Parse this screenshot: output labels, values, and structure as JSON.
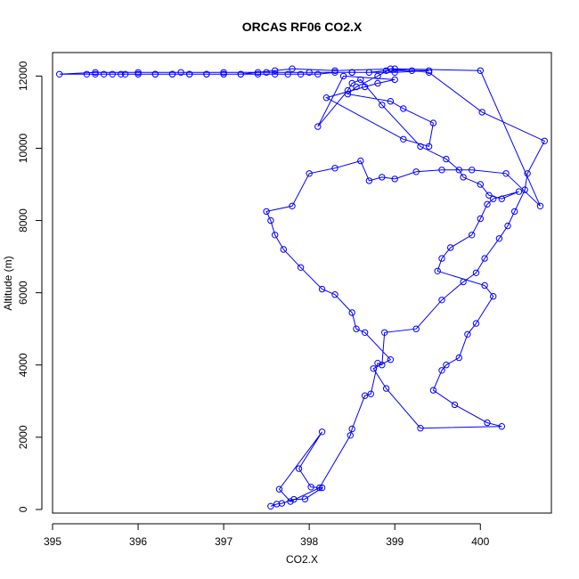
{
  "chart_data": {
    "type": "line",
    "title": "ORCAS RF06 CO2.X",
    "xlabel": "CO2.X",
    "ylabel": "Altitude (m)",
    "xlim": [
      395.0,
      400.83
    ],
    "ylim": [
      -100,
      12650
    ],
    "x_ticks": [
      395,
      396,
      397,
      398,
      399,
      400
    ],
    "y_ticks": [
      0,
      2000,
      4000,
      6000,
      8000,
      10000,
      12000
    ],
    "grid": false,
    "legend": "none",
    "colors": {
      "series": "#0000ff",
      "axis": "#000000",
      "background": "#ffffff"
    },
    "series": [
      {
        "marker": "open-circle",
        "x": [
          397.55,
          397.62,
          397.68,
          397.82,
          397.95,
          398.15,
          398.02,
          397.88,
          398.15,
          397.65,
          397.78,
          398.12,
          398.48,
          398.5,
          398.65,
          398.72,
          398.8,
          398.85,
          398.88,
          399.25,
          399.55,
          399.8,
          399.95,
          400.05,
          400.22,
          400.32,
          400.4,
          400.52,
          400.55,
          400.75,
          400.02,
          399.4,
          398.95,
          398.8,
          398.55,
          398.45,
          398.95,
          399.1,
          399.45,
          399.4,
          399.1,
          398.2,
          398.65,
          398.8,
          399.0,
          398.4,
          398.1,
          398.45,
          398.5,
          398.6,
          398.85,
          399.3,
          399.6,
          399.75,
          399.8,
          400.0,
          400.1,
          400.25,
          400.45,
          400.15,
          400.08,
          400.0,
          399.9,
          399.65,
          399.55,
          399.5,
          400.05,
          400.15,
          399.95,
          399.85,
          399.75,
          399.6,
          399.55,
          399.45,
          399.7,
          400.08,
          400.25,
          399.3,
          398.9,
          398.75,
          398.95,
          398.65,
          398.55,
          398.5,
          398.3,
          398.15,
          397.9,
          397.7,
          397.6,
          397.55,
          397.5,
          397.8,
          398.0,
          398.3,
          398.6,
          398.7,
          398.85,
          399.0,
          399.25,
          399.55,
          399.9,
          400.3,
          400.7,
          400.0,
          399.0,
          398.3,
          397.8,
          397.6,
          397.4,
          397.2,
          397.0,
          396.8,
          396.6,
          396.4,
          396.2,
          396.0,
          395.8,
          395.6,
          395.5,
          395.4,
          395.08,
          395.5,
          396.0,
          396.5,
          397.0,
          397.5,
          398.0,
          398.5,
          399.0,
          399.4,
          399.2,
          398.9,
          398.7,
          398.5,
          398.3,
          398.1,
          397.9,
          397.75,
          397.6,
          397.4,
          397.2,
          397.0,
          396.8,
          396.6,
          396.4,
          396.2,
          396.0,
          395.85,
          395.7
        ],
        "y": [
          90,
          150,
          170,
          280,
          290,
          600,
          620,
          1130,
          2150,
          560,
          220,
          600,
          2050,
          2230,
          3150,
          3200,
          4050,
          4000,
          4900,
          5000,
          5800,
          6300,
          6550,
          6950,
          7500,
          7850,
          8250,
          8850,
          9300,
          10200,
          11000,
          12100,
          12200,
          12000,
          11700,
          11500,
          11300,
          11100,
          10700,
          10050,
          10250,
          11400,
          11700,
          11800,
          11900,
          12000,
          10600,
          11600,
          11800,
          11900,
          11200,
          10050,
          9700,
          9400,
          9200,
          9000,
          8700,
          8600,
          8800,
          8600,
          8450,
          8050,
          7600,
          7250,
          6950,
          6600,
          6200,
          5900,
          5150,
          4850,
          4200,
          4000,
          3850,
          3300,
          2900,
          2400,
          2300,
          2250,
          3350,
          3900,
          4150,
          4900,
          5000,
          5450,
          5950,
          6100,
          6700,
          7200,
          7600,
          8000,
          8250,
          8400,
          9300,
          9450,
          9650,
          9100,
          9200,
          9150,
          9350,
          9400,
          9400,
          9300,
          8400,
          12150,
          12200,
          12150,
          12200,
          12150,
          12100,
          12050,
          12050,
          12050,
          12050,
          12050,
          12050,
          12050,
          12050,
          12050,
          12050,
          12050,
          12050,
          12100,
          12100,
          12100,
          12100,
          12100,
          12100,
          12100,
          12100,
          12150,
          12150,
          12150,
          12100,
          12100,
          12100,
          12050,
          12050,
          12050,
          12050,
          12050,
          12050,
          12050,
          12050,
          12050,
          12050,
          12050,
          12050,
          12050,
          12050
        ]
      }
    ]
  }
}
